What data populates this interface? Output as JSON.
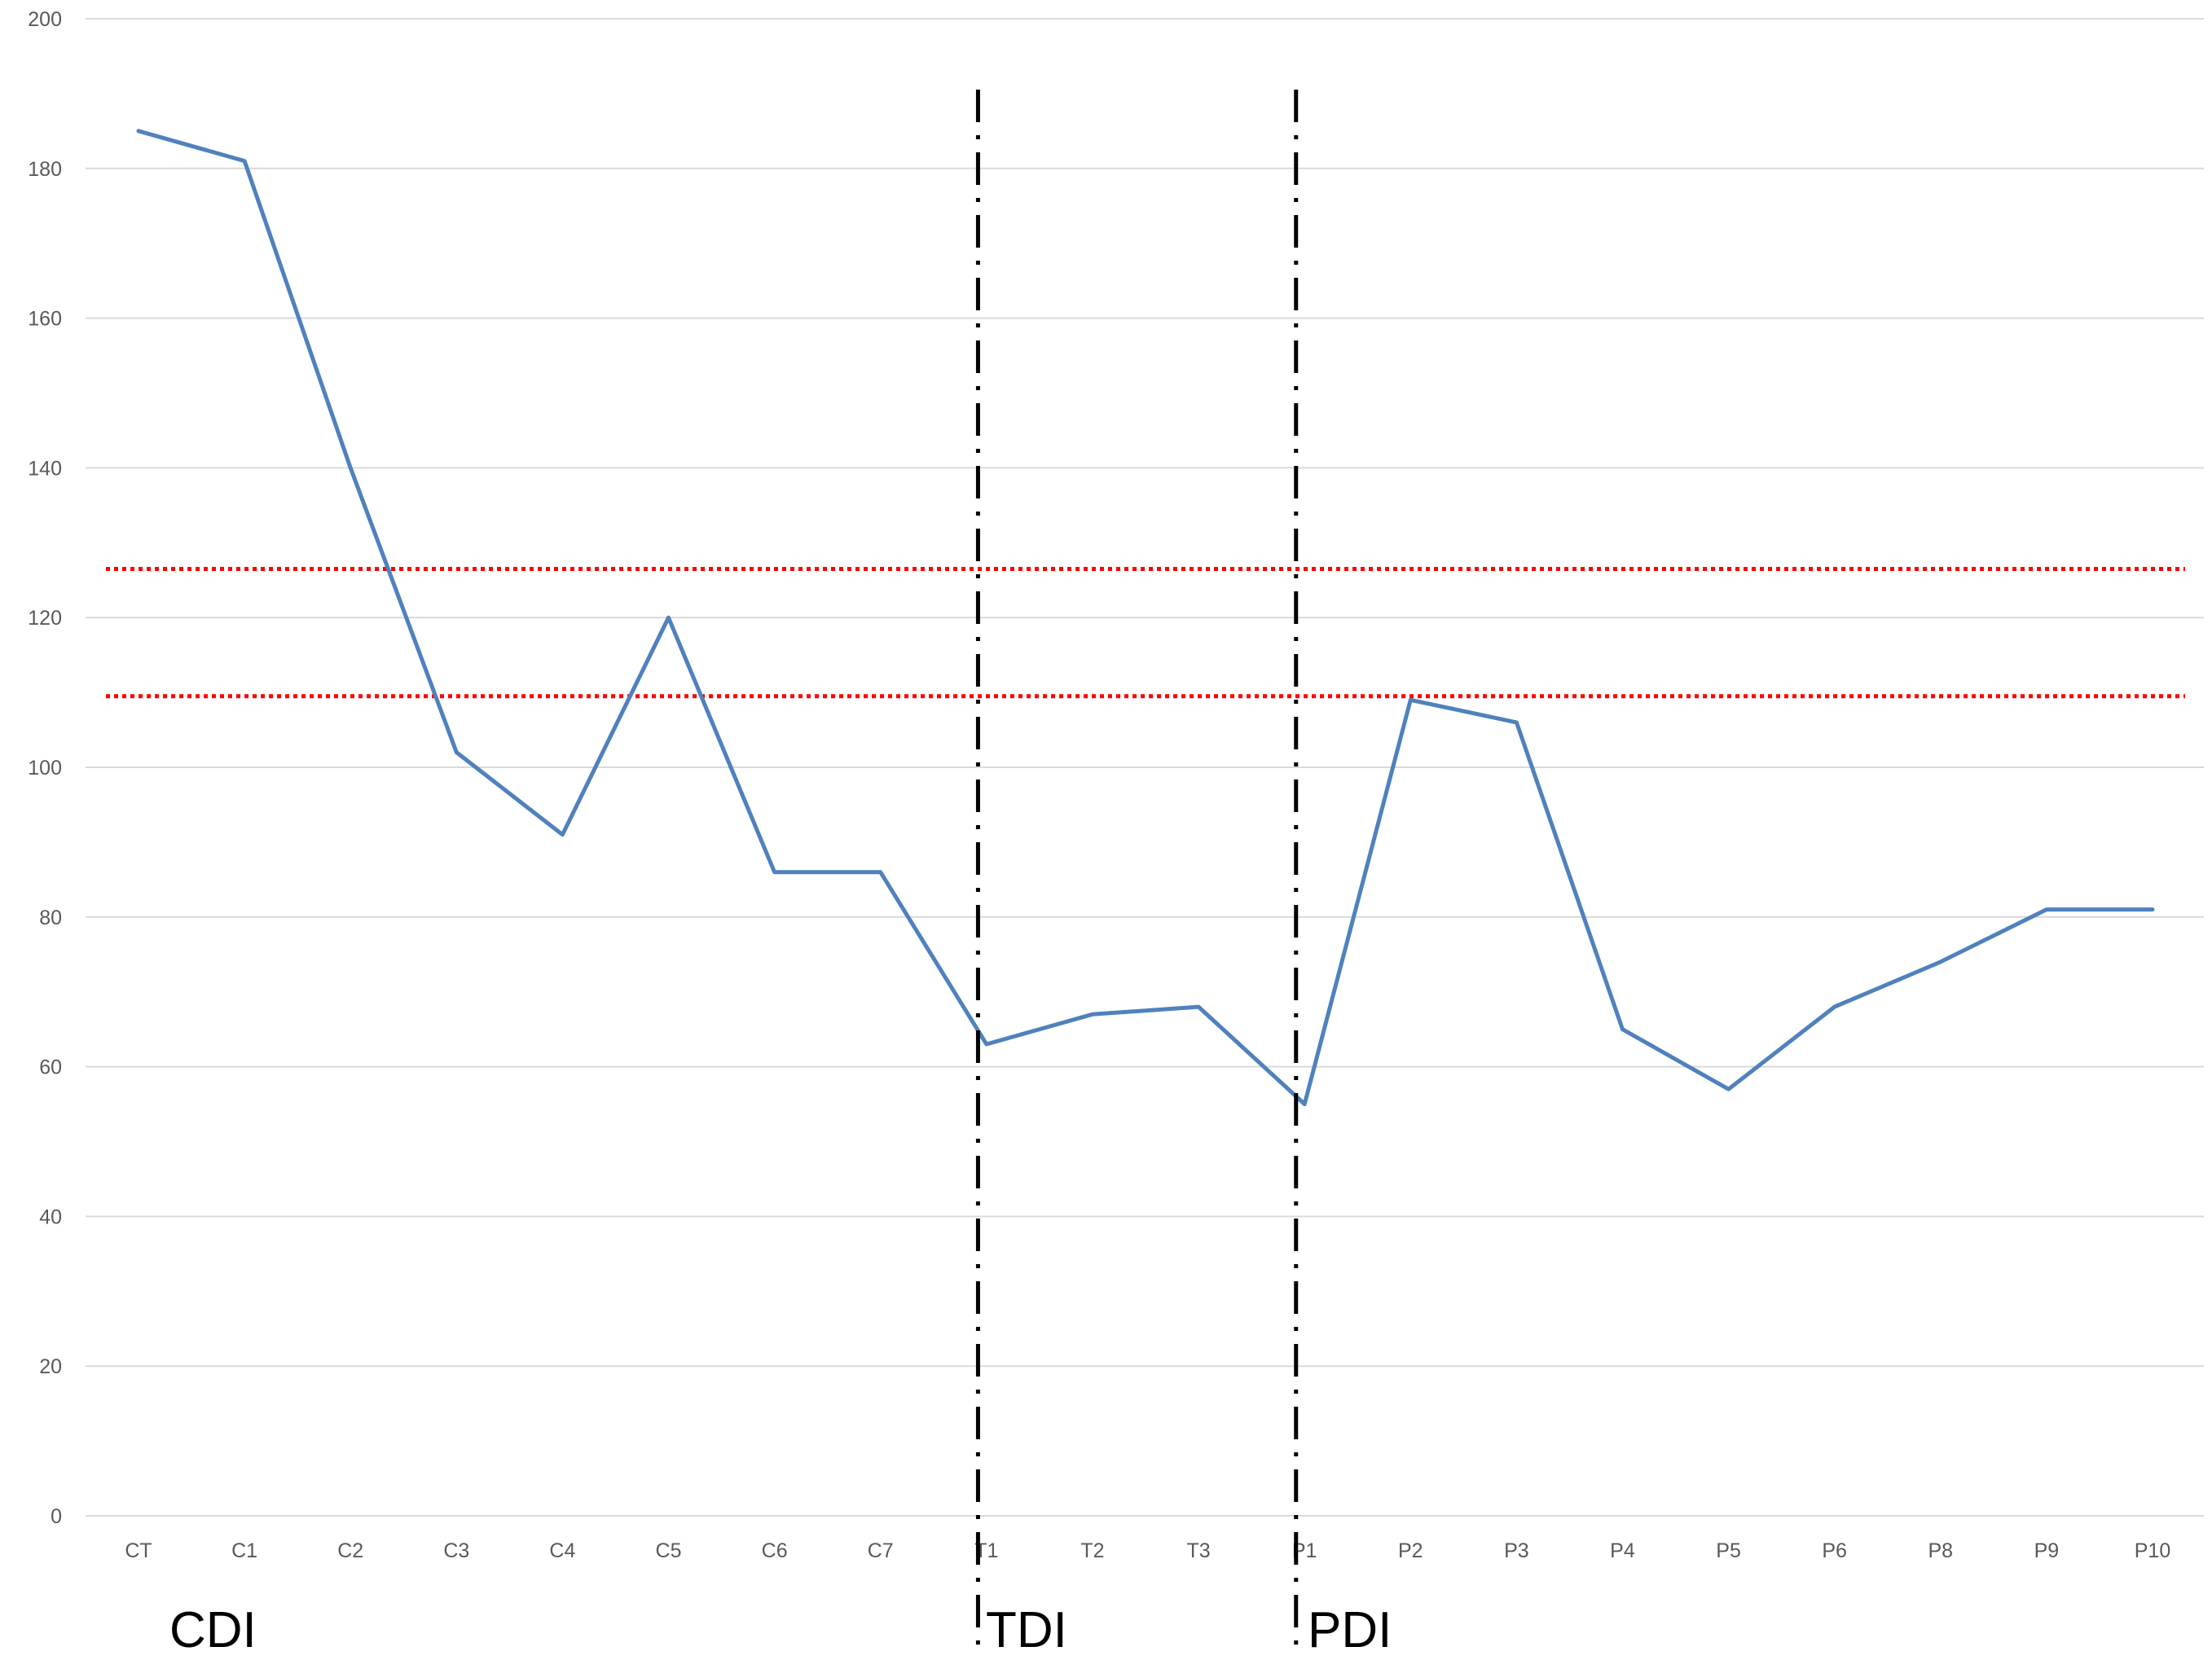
{
  "chart_data": {
    "type": "line",
    "title": "",
    "xlabel": "",
    "ylabel": "",
    "ylim": [
      0,
      200
    ],
    "yticks": [
      0,
      20,
      40,
      60,
      80,
      100,
      120,
      140,
      160,
      180,
      200
    ],
    "grid": true,
    "legend": "none",
    "categories": [
      "CT",
      "C1",
      "C2",
      "C3",
      "C4",
      "C5",
      "C6",
      "C7",
      "T1",
      "T2",
      "T3",
      "P1",
      "P2",
      "P3",
      "P4",
      "P5",
      "P6",
      "P8",
      "P9",
      "P10"
    ],
    "series": [
      {
        "values": [
          185,
          181,
          140,
          102,
          91,
          120,
          86,
          86,
          63,
          67,
          68,
          55,
          109,
          106,
          65,
          57,
          68,
          74,
          81,
          81
        ],
        "color": "#4f81bd"
      }
    ],
    "reference_lines": [
      {
        "y": 126.5,
        "color": "#ff0000",
        "style": "dotted"
      },
      {
        "y": 109.5,
        "color": "#ff0000",
        "style": "dotted"
      }
    ],
    "phase_dividers": [
      {
        "after_category": "C7",
        "color": "#000000",
        "style": "dash-dot"
      },
      {
        "after_category": "T3",
        "color": "#000000",
        "style": "dash-dot"
      }
    ],
    "phase_labels": [
      "CDI",
      "TDI",
      "PDI"
    ]
  }
}
